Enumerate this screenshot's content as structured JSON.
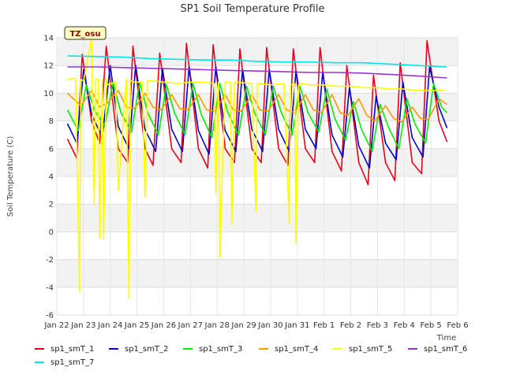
{
  "chart_data": {
    "type": "line",
    "title": "SP1 Soil Temperature Profile",
    "xlabel": "Time",
    "ylabel": "Soil Temperature (C)",
    "annotation": "TZ_osu",
    "xlim": [
      "Jan 22",
      "Feb 6"
    ],
    "ylim": [
      -6,
      14
    ],
    "yticks": [
      -6,
      -4,
      -2,
      0,
      2,
      4,
      6,
      8,
      10,
      12,
      14
    ],
    "xticks": [
      "Jan 22",
      "Jan 23",
      "Jan 24",
      "Jan 25",
      "Jan 26",
      "Jan 27",
      "Jan 28",
      "Jan 29",
      "Jan 30",
      "Jan 31",
      "Feb 1",
      "Feb 2",
      "Feb 3",
      "Feb 4",
      "Feb 5",
      "Feb 6"
    ],
    "grid": true,
    "legend_position": "bottom",
    "series": [
      {
        "name": "sp1_smT_1",
        "color": "#e8001c",
        "x": [
          0.4,
          0.75,
          0.95,
          1.3,
          1.6,
          1.85,
          2.3,
          2.65,
          2.85,
          3.3,
          3.6,
          3.85,
          4.3,
          4.65,
          4.85,
          5.3,
          5.65,
          5.85,
          6.3,
          6.65,
          6.85,
          7.3,
          7.65,
          7.85,
          8.3,
          8.65,
          8.85,
          9.3,
          9.65,
          9.85,
          10.3,
          10.65,
          10.85,
          11.3,
          11.65,
          11.85,
          12.3,
          12.65,
          12.85,
          13.3,
          13.65,
          13.85,
          14.3,
          14.6
        ],
        "y": [
          6.7,
          5.3,
          12.8,
          8.0,
          6.4,
          13.4,
          6.0,
          5.0,
          13.4,
          6.0,
          4.8,
          12.9,
          6.0,
          5.0,
          13.6,
          6.0,
          4.6,
          13.5,
          6.0,
          5.0,
          13.2,
          6.0,
          5.0,
          13.3,
          6.0,
          4.8,
          13.2,
          6.0,
          5.0,
          13.3,
          5.8,
          4.4,
          12.0,
          5.0,
          3.4,
          11.3,
          5.0,
          3.7,
          12.2,
          5.0,
          4.2,
          13.8,
          8.0,
          6.5
        ]
      },
      {
        "name": "sp1_smT_2",
        "color": "#0000cc",
        "x": [
          0.4,
          0.75,
          1.0,
          1.3,
          1.7,
          2.0,
          2.3,
          2.7,
          2.95,
          3.3,
          3.7,
          3.95,
          4.3,
          4.7,
          4.95,
          5.3,
          5.7,
          5.95,
          6.3,
          6.7,
          6.95,
          7.3,
          7.7,
          7.95,
          8.3,
          8.7,
          8.95,
          9.3,
          9.7,
          9.95,
          10.3,
          10.7,
          10.95,
          11.3,
          11.7,
          11.95,
          12.3,
          12.7,
          12.95,
          13.3,
          13.7,
          13.95,
          14.3,
          14.6
        ],
        "y": [
          7.8,
          6.4,
          11.7,
          8.5,
          6.8,
          12.0,
          7.6,
          6.0,
          12.0,
          7.4,
          5.8,
          11.8,
          7.4,
          5.8,
          11.9,
          7.3,
          5.6,
          11.9,
          7.3,
          5.8,
          11.7,
          7.4,
          5.8,
          11.7,
          7.4,
          5.8,
          11.6,
          7.4,
          6.0,
          11.5,
          7.0,
          5.4,
          10.4,
          6.2,
          4.6,
          9.8,
          6.4,
          5.2,
          10.8,
          6.8,
          5.4,
          11.9,
          9.0,
          7.5
        ]
      },
      {
        "name": "sp1_smT_3",
        "color": "#00ee00",
        "x": [
          0.4,
          0.8,
          1.1,
          1.4,
          1.8,
          2.1,
          2.4,
          2.8,
          3.1,
          3.4,
          3.8,
          4.1,
          4.4,
          4.8,
          5.1,
          5.4,
          5.8,
          6.1,
          6.4,
          6.8,
          7.1,
          7.4,
          7.8,
          8.1,
          8.4,
          8.8,
          9.1,
          9.4,
          9.8,
          10.1,
          10.4,
          10.8,
          11.1,
          11.4,
          11.8,
          12.1,
          12.4,
          12.8,
          13.1,
          13.4,
          13.8,
          14.1,
          14.4,
          14.6
        ],
        "y": [
          8.8,
          7.3,
          10.6,
          8.8,
          7.6,
          10.8,
          8.6,
          7.2,
          10.8,
          8.6,
          7.0,
          10.6,
          8.6,
          7.0,
          10.7,
          8.5,
          6.8,
          10.7,
          8.6,
          7.0,
          10.5,
          8.6,
          7.0,
          10.5,
          8.6,
          7.0,
          10.5,
          8.6,
          7.2,
          10.3,
          8.2,
          6.6,
          9.4,
          7.4,
          5.8,
          9.2,
          7.6,
          6.0,
          9.6,
          7.8,
          6.4,
          10.7,
          9.0,
          8.6
        ]
      },
      {
        "name": "sp1_smT_4",
        "color": "#ff9900",
        "x": [
          0.4,
          0.9,
          1.3,
          1.6,
          1.9,
          2.3,
          2.6,
          2.9,
          3.3,
          3.6,
          3.9,
          4.3,
          4.6,
          4.9,
          5.3,
          5.6,
          5.9,
          6.3,
          6.6,
          6.9,
          7.3,
          7.6,
          7.9,
          8.3,
          8.6,
          8.9,
          9.3,
          9.6,
          9.9,
          10.3,
          10.6,
          10.9,
          11.3,
          11.6,
          11.9,
          12.3,
          12.6,
          12.9,
          13.3,
          13.6,
          13.9,
          14.3,
          14.6
        ],
        "y": [
          10.0,
          9.1,
          10.2,
          9.0,
          9.3,
          10.2,
          9.0,
          8.9,
          10.0,
          9.0,
          8.8,
          9.9,
          8.9,
          8.8,
          9.9,
          8.8,
          8.7,
          9.9,
          8.8,
          8.7,
          9.9,
          8.8,
          8.7,
          9.9,
          8.8,
          8.6,
          9.9,
          8.8,
          8.6,
          9.9,
          8.6,
          8.4,
          9.6,
          8.4,
          8.0,
          9.1,
          8.2,
          7.9,
          9.0,
          8.2,
          8.1,
          9.6,
          9.2
        ]
      },
      {
        "name": "sp1_smT_5",
        "color": "#ffff00",
        "x": [
          0.4,
          0.7,
          0.85,
          0.9,
          1.0,
          1.3,
          1.4,
          1.45,
          1.55,
          1.6,
          1.7,
          1.75,
          1.85,
          1.9,
          2.2,
          2.3,
          2.6,
          2.7,
          2.75,
          2.9,
          3.2,
          3.3,
          3.4,
          3.5,
          4.0,
          4.5,
          5.0,
          5.5,
          5.9,
          5.95,
          6.05,
          6.1,
          6.3,
          6.5,
          6.55,
          6.65,
          6.7,
          7.3,
          7.45,
          7.5,
          7.6,
          8.0,
          8.5,
          8.7,
          8.75,
          8.9,
          8.95,
          9.05,
          9.1,
          9.5,
          10.0,
          10.5,
          11.0,
          11.5,
          12.0,
          12.5,
          13.0,
          13.5,
          14.0,
          14.5
        ],
        "y": [
          11.0,
          11.1,
          -4.3,
          11.0,
          10.9,
          13.9,
          2.0,
          11.0,
          11.0,
          -0.4,
          11.0,
          -0.5,
          11.0,
          10.6,
          10.8,
          3.0,
          11.0,
          -4.8,
          10.9,
          10.8,
          10.8,
          2.5,
          10.9,
          10.9,
          10.8,
          10.7,
          10.8,
          10.8,
          10.7,
          2.8,
          10.8,
          -1.8,
          10.8,
          10.8,
          0.5,
          10.8,
          10.8,
          10.7,
          1.5,
          10.7,
          10.7,
          10.6,
          10.7,
          0.6,
          10.6,
          10.7,
          -0.8,
          10.6,
          10.7,
          10.6,
          10.6,
          10.5,
          10.5,
          10.4,
          10.4,
          10.3,
          10.3,
          10.2,
          10.2,
          10.2
        ]
      },
      {
        "name": "sp1_smT_6",
        "color": "#9933cc",
        "x": [
          0.4,
          1.5,
          2.5,
          3.5,
          4.5,
          5.5,
          6.5,
          7.5,
          8.5,
          9.5,
          10.5,
          11.5,
          12.5,
          13.5,
          14.6
        ],
        "y": [
          11.9,
          11.9,
          11.85,
          11.8,
          11.75,
          11.7,
          11.65,
          11.6,
          11.55,
          11.5,
          11.5,
          11.45,
          11.35,
          11.25,
          11.1
        ]
      },
      {
        "name": "sp1_smT_7",
        "color": "#00e5e5",
        "x": [
          0.4,
          1.5,
          2.5,
          3.5,
          4.5,
          5.5,
          6.5,
          7.5,
          8.5,
          9.5,
          10.5,
          11.5,
          12.5,
          13.5,
          14.6
        ],
        "y": [
          12.7,
          12.65,
          12.6,
          12.5,
          12.45,
          12.4,
          12.4,
          12.3,
          12.25,
          12.25,
          12.2,
          12.2,
          12.1,
          12.0,
          11.9
        ]
      }
    ]
  }
}
